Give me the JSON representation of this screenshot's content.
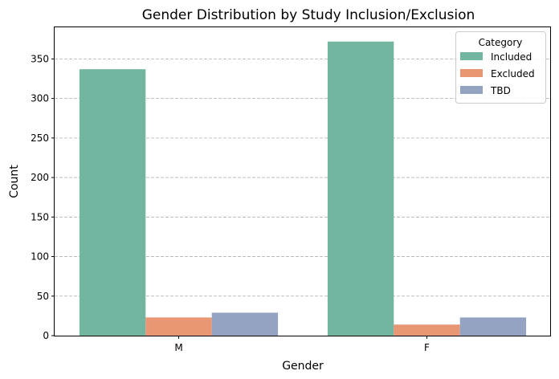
{
  "chart_data": {
    "type": "bar",
    "title": "Gender Distribution by Study Inclusion/Exclusion",
    "xlabel": "Gender",
    "ylabel": "Count",
    "categories": [
      "M",
      "F"
    ],
    "ylim": [
      0,
      390
    ],
    "yticks": [
      0,
      50,
      100,
      150,
      200,
      250,
      300,
      350
    ],
    "grid": "y-dashed",
    "legend": {
      "title": "Category",
      "placement": "top-right"
    },
    "series": [
      {
        "name": "Included",
        "values": [
          337,
          372
        ],
        "color": "#72b6a1"
      },
      {
        "name": "Excluded",
        "values": [
          23,
          14
        ],
        "color": "#e99675"
      },
      {
        "name": "TBD",
        "values": [
          29,
          23
        ],
        "color": "#95a3c3"
      }
    ]
  }
}
